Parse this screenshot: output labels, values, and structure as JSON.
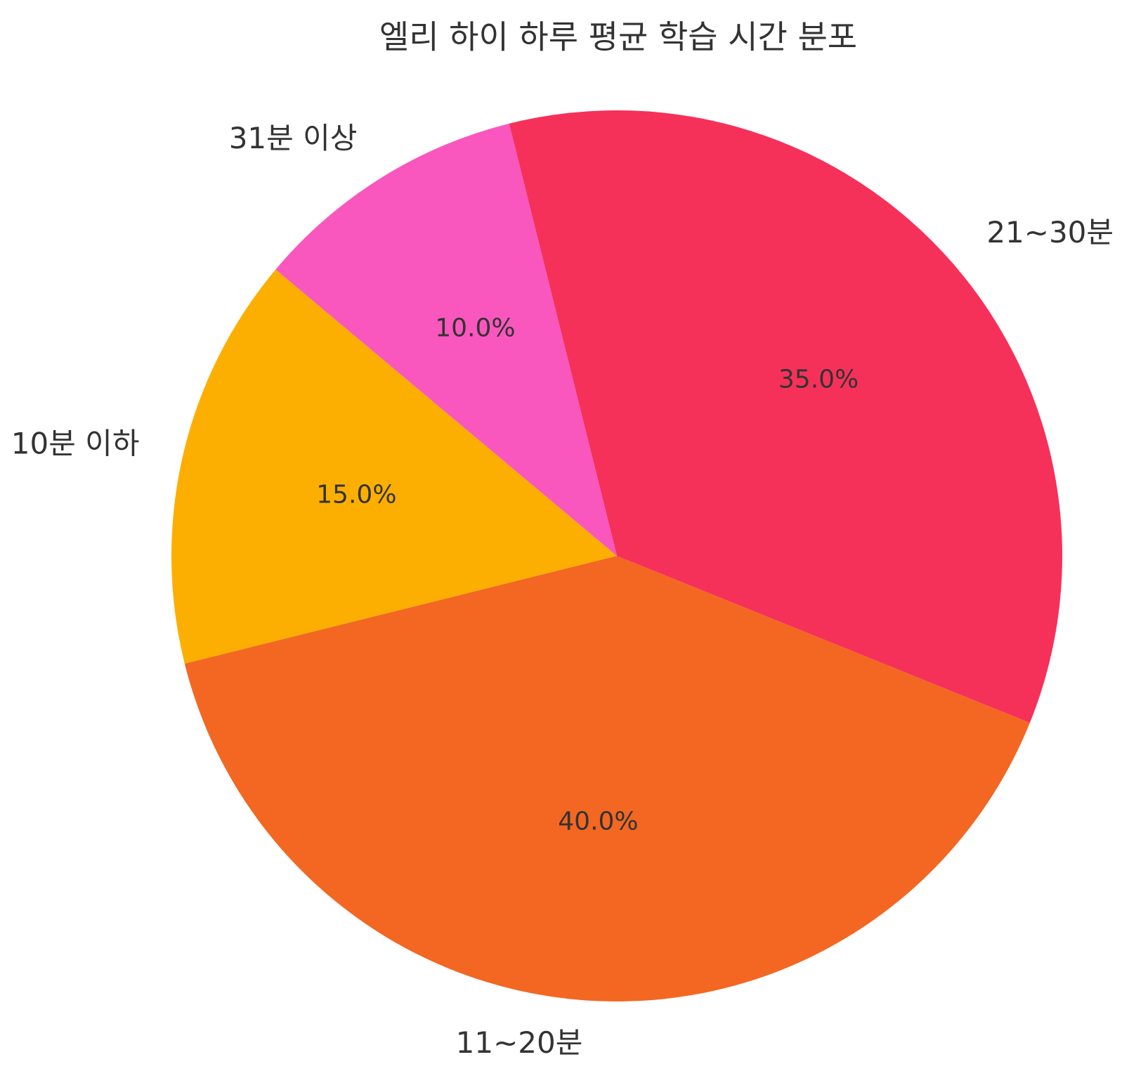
{
  "chart_data": {
    "type": "pie",
    "title": "엘리 하이 하루 평균 학습 시간 분포",
    "categories": [
      "10분 이하",
      "11~20분",
      "21~30분",
      "31분 이상"
    ],
    "values": [
      15,
      40,
      35,
      10
    ],
    "value_labels": [
      "15.0%",
      "40.0%",
      "35.0%",
      "10.0%"
    ],
    "colors": [
      "#fdaf01",
      "#f36722",
      "#f5315a",
      "#f957bd"
    ],
    "startangle": 140
  }
}
